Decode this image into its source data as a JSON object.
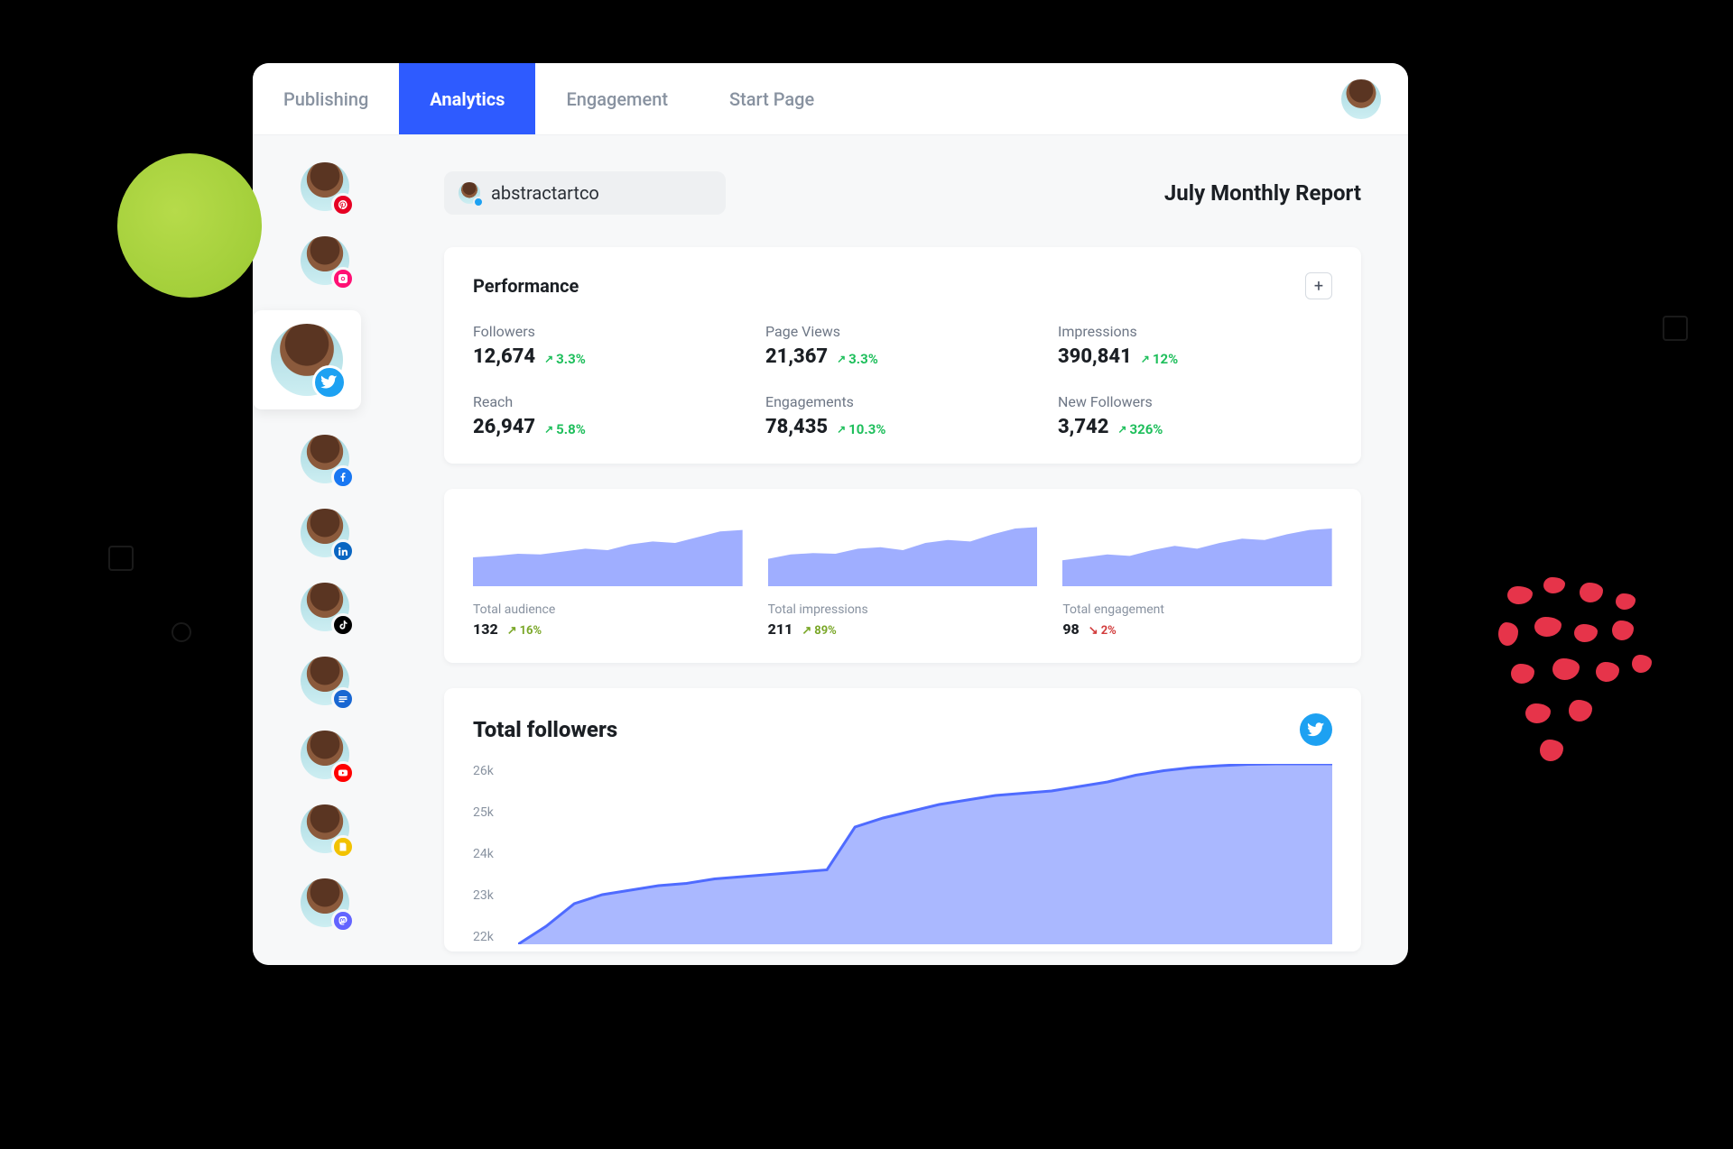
{
  "colors": {
    "accent": "#2e5bff",
    "chart_fill": "#8ea0ff",
    "chart_stroke": "#4f6bff",
    "up_green": "#1fbf5c",
    "up_olive": "#7aa728",
    "down_red": "#d23c3c",
    "twitter": "#1da1f2",
    "pinterest": "#e60023",
    "instagram": "#ff1074",
    "facebook": "#1877f2",
    "linkedin": "#0a66c2",
    "tiktok": "#000000",
    "google": "#1967d2",
    "youtube": "#ff0000",
    "notes": "#f2c200",
    "mastodon": "#6364ff"
  },
  "header": {
    "tabs": [
      "Publishing",
      "Analytics",
      "Engagement",
      "Start Page"
    ],
    "active_index": 1
  },
  "account": {
    "handle": "abstractartco",
    "network": "twitter"
  },
  "report_title": "July Monthly Report",
  "sidebar": {
    "active_index": 2,
    "items": [
      {
        "network": "pinterest"
      },
      {
        "network": "instagram"
      },
      {
        "network": "twitter"
      },
      {
        "network": "facebook"
      },
      {
        "network": "linkedin"
      },
      {
        "network": "tiktok"
      },
      {
        "network": "google"
      },
      {
        "network": "youtube"
      },
      {
        "network": "notes"
      },
      {
        "network": "mastodon"
      }
    ]
  },
  "performance": {
    "title": "Performance",
    "metrics": [
      {
        "label": "Followers",
        "value": "12,674",
        "delta": "3.3%",
        "dir": "up"
      },
      {
        "label": "Page Views",
        "value": "21,367",
        "delta": "3.3%",
        "dir": "up"
      },
      {
        "label": "Impressions",
        "value": "390,841",
        "delta": "12%",
        "dir": "up"
      },
      {
        "label": "Reach",
        "value": "26,947",
        "delta": "5.8%",
        "dir": "up"
      },
      {
        "label": "Engagements",
        "value": "78,435",
        "delta": "10.3%",
        "dir": "up"
      },
      {
        "label": "New Followers",
        "value": "3,742",
        "delta": "326%",
        "dir": "up"
      }
    ]
  },
  "sparklines": {
    "items": [
      {
        "label": "Total audience",
        "value": "132",
        "delta": "16%",
        "dir": "up",
        "points": [
          40,
          42,
          45,
          44,
          48,
          52,
          50,
          58,
          62,
          60,
          68,
          76,
          78
        ]
      },
      {
        "label": "Total impressions",
        "value": "211",
        "delta": "89%",
        "dir": "up",
        "points": [
          38,
          44,
          46,
          45,
          52,
          54,
          50,
          60,
          64,
          62,
          72,
          80,
          82
        ]
      },
      {
        "label": "Total engagement",
        "value": "98",
        "delta": "2%",
        "dir": "down",
        "points": [
          36,
          40,
          44,
          42,
          50,
          56,
          52,
          60,
          66,
          64,
          72,
          78,
          80
        ]
      }
    ],
    "ymax": 100
  },
  "followers_chart": {
    "title": "Total followers",
    "network": "twitter",
    "y_ticks": [
      "26k",
      "25k",
      "24k",
      "23k",
      "22k"
    ],
    "y_min": 22000,
    "y_max": 26000,
    "series": [
      22000,
      22400,
      22900,
      23100,
      23200,
      23300,
      23350,
      23450,
      23500,
      23550,
      23600,
      23650,
      24600,
      24800,
      24950,
      25100,
      25200,
      25300,
      25350,
      25400,
      25500,
      25600,
      25750,
      25850,
      25920,
      25960,
      25990,
      26000,
      26000,
      26000
    ]
  }
}
